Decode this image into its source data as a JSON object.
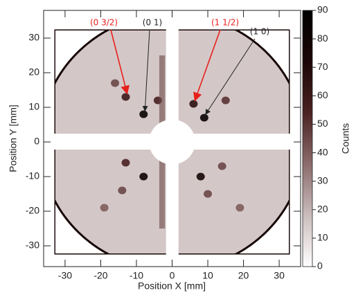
{
  "chart_data": {
    "type": "heatmap",
    "x_label": "Position X [mm]",
    "y_label": "Position Y [mm]",
    "colorbar_label": "Counts",
    "xlim": [
      -36,
      36
    ],
    "xticks": [
      -30,
      -20,
      -10,
      0,
      10,
      20,
      30
    ],
    "ylim": [
      -36,
      38
    ],
    "yticks": [
      -30,
      -20,
      -10,
      0,
      10,
      20,
      30
    ],
    "zlim": [
      0,
      90
    ],
    "zticks": [
      0,
      10,
      20,
      30,
      40,
      50,
      60,
      70,
      80,
      90
    ],
    "colormap": [
      "#ffffff",
      "#cbbcbc",
      "#8c6c6c",
      "#4c2222",
      "#1c0606",
      "#000000"
    ],
    "background": 15,
    "spots": {
      "x": [
        -13,
        -8,
        -16,
        -4,
        -8,
        -13,
        -14,
        -19,
        6,
        9,
        15,
        8,
        10,
        14,
        19
      ],
      "y": [
        13,
        8,
        17,
        12,
        -10,
        -6,
        -14,
        -19,
        11,
        7,
        12,
        -10,
        -15,
        -7,
        -19
      ],
      "counts": [
        60,
        85,
        45,
        55,
        80,
        55,
        45,
        40,
        65,
        85,
        50,
        75,
        45,
        45,
        40
      ]
    },
    "annotations": [
      {
        "text": "(0 3/2)",
        "color": "#e8201c"
      },
      {
        "text": "(0 1)",
        "color": "#222222"
      },
      {
        "text": "(1 1/2)",
        "color": "#e8201c"
      },
      {
        "text": "(1 0)",
        "color": "#222222"
      }
    ]
  }
}
